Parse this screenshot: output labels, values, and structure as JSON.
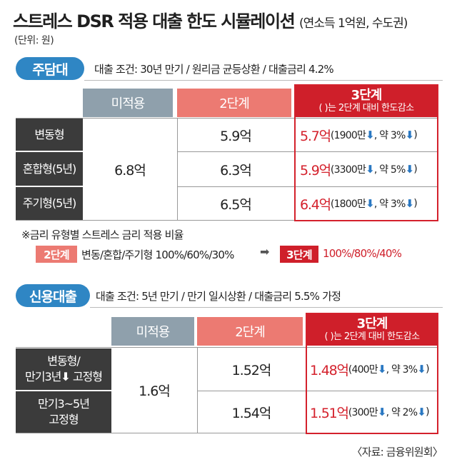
{
  "title": {
    "main": "스트레스 DSR 적용 대출 한도 시뮬레이션",
    "sub": "(연소득 1억원, 수도권)"
  },
  "unit_note": "(단위: 원)",
  "mortgage": {
    "badge": "주담대",
    "conditions": "대출 조건: 30년 만기 / 원리금 균등상환 / 대출금리 4.2%",
    "headers": {
      "col1": "미적용",
      "col2": "2단계",
      "col3_main": "3단계",
      "col3_sub": "(  )는 2단계 대비 한도감소"
    },
    "merged_value": "6.8억",
    "rows": [
      {
        "label": "변동형",
        "stage2": "5.9억",
        "stage3": "5.7억",
        "detail_pre": "(1900만",
        "detail_mid": ", 약 3%",
        "detail_end": ")"
      },
      {
        "label": "혼합형(5년)",
        "stage2": "6.3억",
        "stage3": "5.9억",
        "detail_pre": "(3300만",
        "detail_mid": ", 약 5%",
        "detail_end": ")"
      },
      {
        "label": "주기형(5년)",
        "stage2": "6.5억",
        "stage3": "6.4억",
        "detail_pre": "(1800만",
        "detail_mid": ", 약 3%",
        "detail_end": ")"
      }
    ]
  },
  "rate_note": {
    "text": "※금리 유형별 스트레스 금리 적용 비율",
    "tag_stage2": "2단계",
    "stage2_rates": "변동/혼합/주기형 100%/60%/30%",
    "arrow": "➡",
    "tag_stage3": "3단계",
    "stage3_rates": "100%/80%/40%"
  },
  "credit": {
    "badge": "신용대출",
    "conditions": "대출 조건: 5년 만기 / 만기 일시상환 / 대출금리 5.5% 가정",
    "headers": {
      "col1": "미적용",
      "col2": "2단계",
      "col3_main": "3단계",
      "col3_sub": "(  )는 2단계 대비 한도감소"
    },
    "merged_value": "1.6억",
    "rows": [
      {
        "label_line1": "변동형/",
        "label_line2": "만기3년",
        "label_line2b": " 고정형",
        "stage2": "1.52억",
        "stage3": "1.48억",
        "detail_pre": "(400만",
        "detail_mid": ", 약 3%",
        "detail_end": ")"
      },
      {
        "label_line1": "만기3~5년",
        "label_line2": "고정형",
        "stage2": "1.54억",
        "stage3": "1.51억",
        "detail_pre": "(300만",
        "detail_mid": ", 약 2%",
        "detail_end": ")"
      }
    ]
  },
  "icons": {
    "down_arrow": "down-arrow-icon"
  },
  "colors": {
    "blue": "#2f86c4",
    "gray": "#8fa0ac",
    "salmon": "#ec7a72",
    "red": "#cf1f2a",
    "dark": "#3b3b3b"
  },
  "source": "〈자료: 금융위원회〉"
}
